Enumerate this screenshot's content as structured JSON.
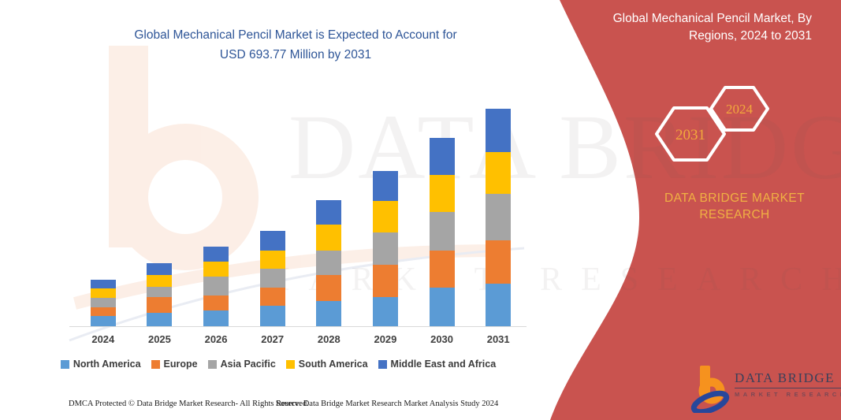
{
  "title": {
    "line1": "Global Mechanical Pencil Market is Expected to Account for",
    "line2": "USD 693.77 Million by 2031"
  },
  "banner": {
    "heading_line1": "Global Mechanical Pencil Market, By",
    "heading_line2": "Regions, 2024 to 2031",
    "brand_text": "DATA BRIDGE MARKET RESEARCH",
    "bg_color": "#C9534F",
    "gold_color": "#F2A93C",
    "hexagons": [
      {
        "label": "2031"
      },
      {
        "label": "2024"
      }
    ]
  },
  "watermark": {
    "line1": "DATA BRIDGE",
    "line2": "MARKET RESEARCH"
  },
  "logo": {
    "name": "DATA BRIDGE",
    "subtitle": "MARKET RESEARCH"
  },
  "footer": {
    "dmca": "DMCA Protected © Data Bridge Market Research-  All Rights Reserved.",
    "source": "Source: Data Bridge Market Research  Market Analysis Study 2024"
  },
  "chart_data": {
    "type": "bar",
    "stacked": true,
    "title": "Global Mechanical Pencil Market is Expected to Account for USD 693.77 Million by 2031",
    "unit": "USD Million",
    "categories": [
      "2024",
      "2025",
      "2026",
      "2027",
      "2028",
      "2029",
      "2030",
      "2031"
    ],
    "series": [
      {
        "name": "North America",
        "color": "#5B9BD5",
        "values": [
          33,
          44,
          50,
          65,
          81,
          92,
          123,
          136.77
        ]
      },
      {
        "name": "Europe",
        "color": "#ED7D31",
        "values": [
          28,
          50,
          48,
          59,
          82,
          105,
          117,
          138
        ]
      },
      {
        "name": "Asia Pacific",
        "color": "#A5A5A5",
        "values": [
          31,
          31,
          61,
          59,
          78,
          101,
          124,
          147
        ]
      },
      {
        "name": "South America",
        "color": "#FFC000",
        "values": [
          29,
          39,
          48,
          59,
          84,
          101,
          117,
          134
        ]
      },
      {
        "name": "Middle East and Africa",
        "color": "#4472C4",
        "values": [
          29,
          38,
          47,
          63,
          77,
          96,
          119,
          138
        ]
      }
    ],
    "totals": [
      150,
      202,
      254,
      305,
      402,
      495,
      600,
      693.77
    ],
    "ylim": [
      0,
      700
    ],
    "value_axis_visible": false,
    "gridlines": false,
    "legend_position": "bottom"
  }
}
